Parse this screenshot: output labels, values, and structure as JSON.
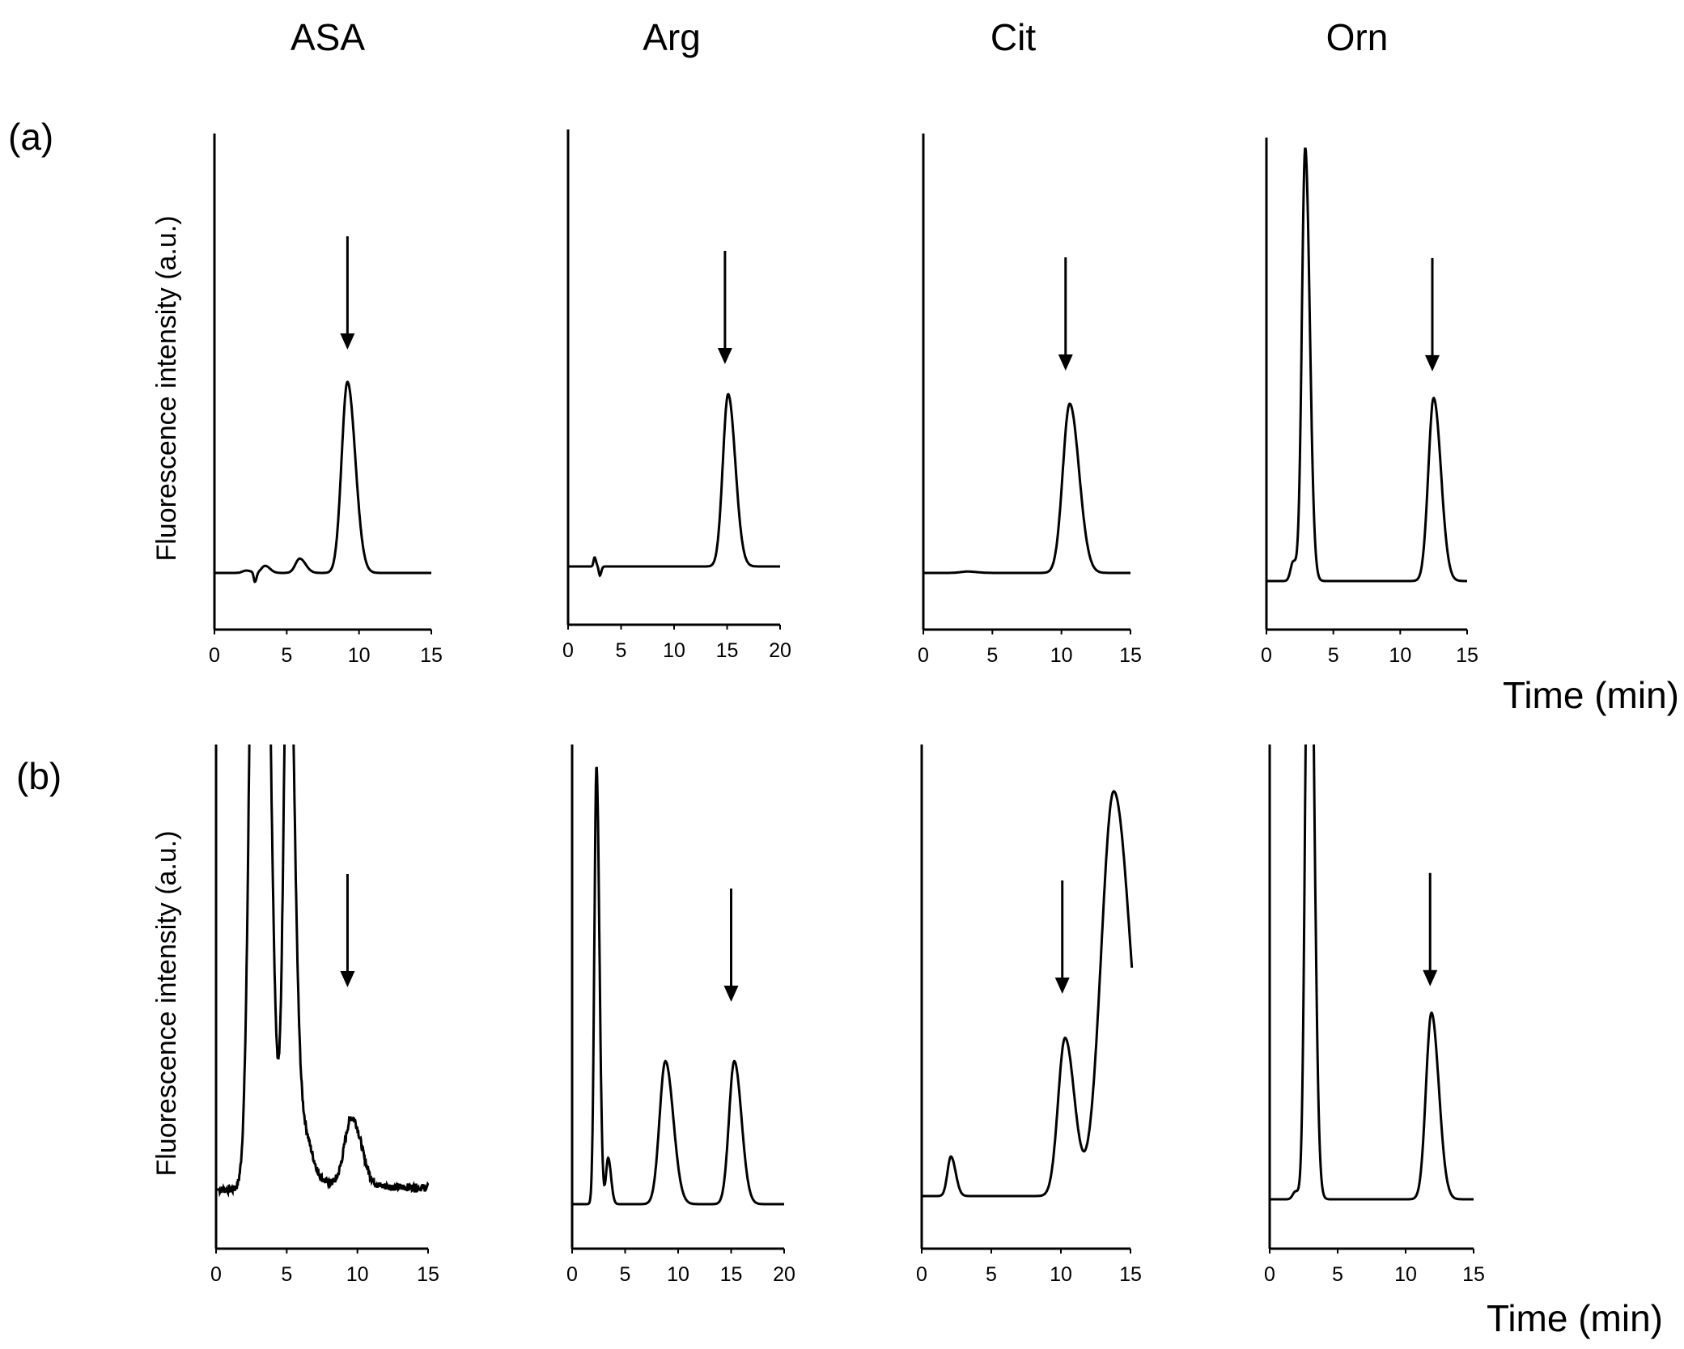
{
  "figure": {
    "column_titles": [
      "ASA",
      "Arg",
      "Cit",
      "Orn"
    ],
    "row_labels": [
      "(a)",
      "(b)"
    ],
    "ylabel": "Fluorescence intensity (a.u.)",
    "time_label": "Time (min)",
    "colors": {
      "trace": "#000000",
      "background": "#ffffff"
    }
  },
  "chart_data": [
    {
      "type": "line",
      "title": "ASA",
      "panel": "(a)",
      "xlabel": "",
      "ylabel": "Fluorescence intensity (a.u.)",
      "xlim": [
        0,
        15
      ],
      "xticks": [
        0,
        5,
        10,
        15
      ],
      "ylim": [
        -10,
        100
      ],
      "arrow_at": 9.2,
      "peaks": [
        [
          2.2,
          0.5,
          0.25
        ],
        [
          2.8,
          -2,
          0.08
        ],
        [
          3.5,
          1.5,
          0.25
        ],
        [
          5.9,
          3,
          0.3
        ],
        [
          9.2,
          40,
          0.4
        ]
      ]
    },
    {
      "type": "line",
      "title": "Arg",
      "panel": "(a)",
      "xlabel": "",
      "ylabel": "Fluorescence intensity (a.u.)",
      "xlim": [
        0,
        20
      ],
      "xticks": [
        0,
        5,
        10,
        15,
        20
      ],
      "ylim": [
        -10,
        100
      ],
      "arrow_at": 14.8,
      "peaks": [
        [
          2.5,
          2,
          0.1
        ],
        [
          3.0,
          -2,
          0.1
        ],
        [
          15.1,
          38,
          0.5
        ]
      ]
    },
    {
      "type": "line",
      "title": "Cit",
      "panel": "(a)",
      "xlabel": "",
      "ylabel": "Fluorescence intensity (a.u.)",
      "xlim": [
        0,
        15
      ],
      "xticks": [
        0,
        5,
        10,
        15
      ],
      "ylim": [
        -10,
        100
      ],
      "arrow_at": 10.3,
      "peaks": [
        [
          3.2,
          0.3,
          0.5
        ],
        [
          10.6,
          37,
          0.5
        ]
      ]
    },
    {
      "type": "line",
      "title": "Orn",
      "panel": "(a)",
      "xlabel": "Time (min)",
      "ylabel": "Fluorescence intensity (a.u.)",
      "xlim": [
        0,
        15
      ],
      "xticks": [
        0,
        5,
        10,
        15
      ],
      "ylim": [
        -10,
        100
      ],
      "arrow_at": 12.4,
      "peaks": [
        [
          2.0,
          4,
          0.2
        ],
        [
          2.9,
          90,
          0.25
        ],
        [
          12.5,
          38,
          0.4
        ]
      ]
    },
    {
      "type": "line",
      "title": "ASA",
      "panel": "(b)",
      "xlabel": "",
      "ylabel": "Fluorescence intensity (a.u.)",
      "xlim": [
        0,
        15
      ],
      "xticks": [
        0,
        5,
        10,
        15
      ],
      "ylim": [
        -10,
        100
      ],
      "arrow_at": 9.3,
      "peaks": [
        [
          3.0,
          260,
          0.45
        ],
        [
          5.1,
          130,
          0.3
        ],
        [
          6.0,
          12,
          0.5
        ],
        [
          9.6,
          14,
          0.5
        ]
      ]
    },
    {
      "type": "line",
      "title": "Arg",
      "panel": "(b)",
      "xlabel": "",
      "ylabel": "Fluorescence intensity (a.u.)",
      "xlim": [
        0,
        20
      ],
      "xticks": [
        0,
        5,
        10,
        15,
        20
      ],
      "ylim": [
        -10,
        100
      ],
      "arrow_at": 15.0,
      "peaks": [
        [
          2.3,
          95,
          0.2
        ],
        [
          3.4,
          10,
          0.2
        ],
        [
          8.8,
          31,
          0.55
        ],
        [
          15.3,
          31,
          0.5
        ]
      ]
    },
    {
      "type": "line",
      "title": "Cit",
      "panel": "(b)",
      "xlabel": "",
      "ylabel": "Fluorescence intensity (a.u.)",
      "xlim": [
        0,
        15
      ],
      "xticks": [
        0,
        5,
        10,
        15
      ],
      "ylim": [
        -10,
        100
      ],
      "arrow_at": 10.1,
      "peaks": [
        [
          2.1,
          8,
          0.25
        ],
        [
          10.3,
          32,
          0.5
        ],
        [
          13.8,
          82,
          0.9
        ]
      ]
    },
    {
      "type": "line",
      "title": "Orn",
      "panel": "(b)",
      "xlabel": "Time (min)",
      "ylabel": "Fluorescence intensity (a.u.)",
      "xlim": [
        0,
        15
      ],
      "xticks": [
        0,
        5,
        10,
        15
      ],
      "ylim": [
        -10,
        100
      ],
      "arrow_at": 11.8,
      "peaks": [
        [
          1.9,
          1.5,
          0.2
        ],
        [
          2.9,
          150,
          0.25
        ],
        [
          11.9,
          36,
          0.4
        ]
      ]
    }
  ]
}
